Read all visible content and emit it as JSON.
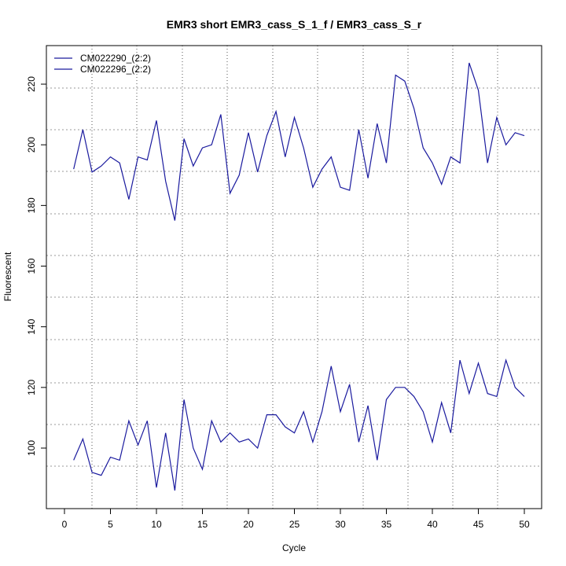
{
  "chart_data": {
    "type": "line",
    "title": "EMR3 short EMR3_cass_S_1_f / EMR3_cass_S_r",
    "xlabel": "Cycle",
    "ylabel": "Fluorescent",
    "xlim": [
      -2,
      52
    ],
    "ylim": [
      81,
      233
    ],
    "xticks": [
      0,
      5,
      10,
      15,
      20,
      25,
      30,
      35,
      40,
      45,
      50
    ],
    "yticks": [
      100,
      120,
      140,
      160,
      180,
      200,
      220
    ],
    "legend_position": "top-left",
    "grid": true,
    "x": [
      1,
      2,
      3,
      4,
      5,
      6,
      7,
      8,
      9,
      10,
      11,
      12,
      13,
      14,
      15,
      16,
      17,
      18,
      19,
      20,
      21,
      22,
      23,
      24,
      25,
      26,
      27,
      28,
      29,
      30,
      31,
      32,
      33,
      34,
      35,
      36,
      37,
      38,
      39,
      40,
      41,
      42,
      43,
      44,
      45,
      46,
      47,
      48,
      49,
      50
    ],
    "series": [
      {
        "name": "CM022290_(2:2)",
        "color": "#1a1a9e",
        "values": [
          192,
          205,
          191,
          193,
          196,
          194,
          182,
          196,
          195,
          208,
          188,
          175,
          202,
          193,
          199,
          200,
          210,
          184,
          190,
          204,
          191,
          203,
          211,
          196,
          209,
          199,
          186,
          192,
          196,
          186,
          185,
          205,
          189,
          207,
          194,
          223,
          221,
          212,
          199,
          194,
          187,
          196,
          194,
          227,
          218,
          194,
          209,
          200,
          204,
          203
        ]
      },
      {
        "name": "CM022296_(2:2)",
        "color": "#1a1a9e",
        "values": [
          96,
          103,
          92,
          91,
          97,
          96,
          109,
          101,
          109,
          87,
          105,
          86,
          116,
          100,
          93,
          109,
          102,
          105,
          102,
          103,
          100,
          111,
          111,
          107,
          105,
          112,
          102,
          112,
          127,
          112,
          121,
          102,
          114,
          96,
          116,
          120,
          120,
          117,
          112,
          102,
          115,
          105,
          129,
          118,
          128,
          118,
          117,
          129,
          120,
          117
        ]
      }
    ]
  }
}
